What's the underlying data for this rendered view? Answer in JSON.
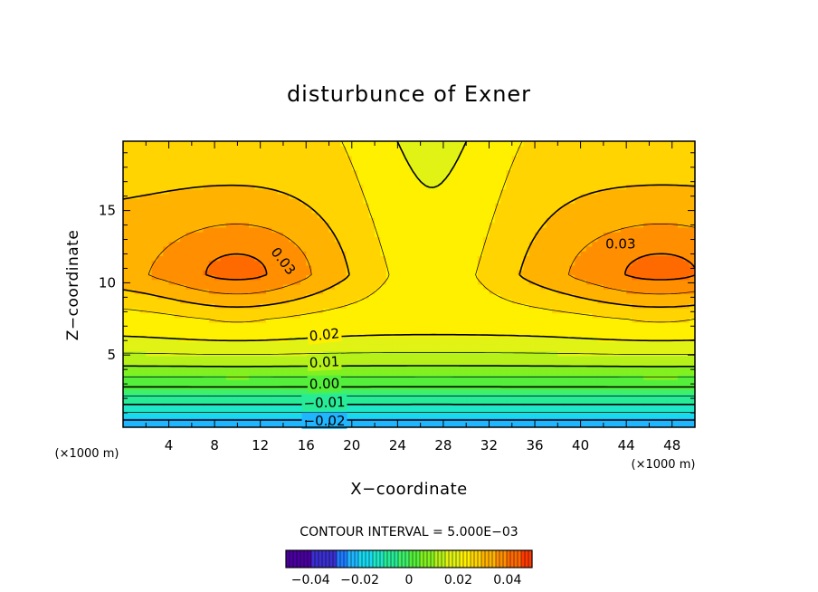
{
  "chart_data": {
    "type": "contour",
    "title": "disturbunce of Exner",
    "xlabel": "X−coordinate",
    "ylabel": "Z−coordinate",
    "x_unit_left": "(×1000 m)",
    "x_unit_right": "(×1000 m)",
    "xlim": [
      0,
      50
    ],
    "ylim": [
      0,
      19.8
    ],
    "x_ticks": [
      4,
      8,
      12,
      16,
      20,
      24,
      28,
      32,
      36,
      40,
      44,
      48
    ],
    "y_ticks": [
      5,
      10,
      15
    ],
    "contour_interval_text": "CONTOUR INTERVAL = 5.000E−03",
    "contour_labels": [
      {
        "text": "0.03",
        "x": 14,
        "z": 11.5,
        "angle": 52
      },
      {
        "text": "0.03",
        "x": 43.5,
        "z": 12.7,
        "angle": 0
      },
      {
        "text": "0.02",
        "x": 17.6,
        "z": 6.4,
        "angle": -6
      },
      {
        "text": "0.01",
        "x": 17.6,
        "z": 4.5,
        "angle": -3
      },
      {
        "text": "0.00",
        "x": 17.6,
        "z": 3.0,
        "angle": -2
      },
      {
        "text": "−0.01",
        "x": 17.6,
        "z": 1.7,
        "angle": -2
      },
      {
        "text": "−0.02",
        "x": 17.6,
        "z": 0.45,
        "angle": 0
      }
    ],
    "colorbar": {
      "range": [
        -0.05,
        0.05
      ],
      "labels": [
        "−0.04",
        "−0.02",
        "0",
        "0.02",
        "0.04"
      ],
      "values": [
        -0.04,
        -0.02,
        0,
        0.02,
        0.04
      ]
    }
  }
}
